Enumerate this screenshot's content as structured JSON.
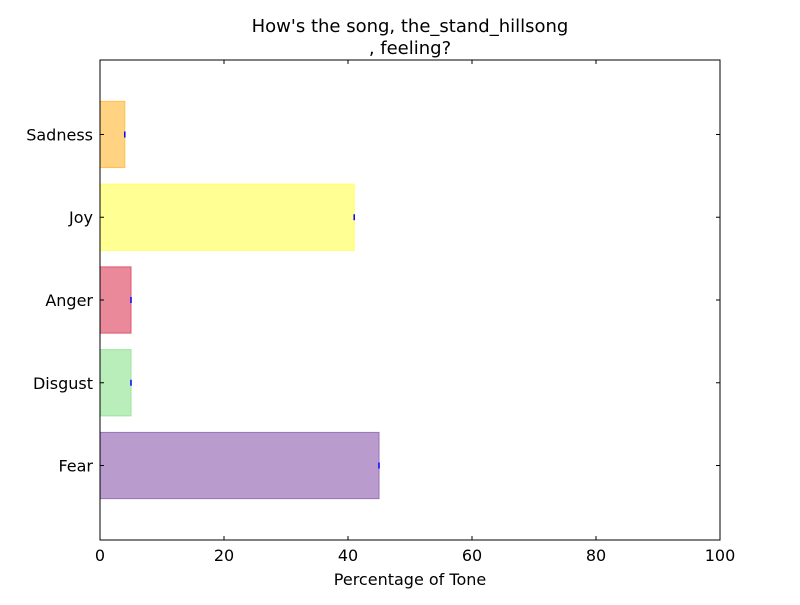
{
  "chart_data": {
    "type": "bar",
    "orientation": "horizontal",
    "title_line1": "How's the song, the_stand_hillsong",
    "title_line2": ", feeling?",
    "xlabel": "Percentage of Tone",
    "ylabel": "",
    "xlim": [
      0,
      100
    ],
    "x_ticks": [
      0,
      20,
      40,
      60,
      80,
      100
    ],
    "categories": [
      "Fear",
      "Disgust",
      "Anger",
      "Joy",
      "Sadness"
    ],
    "values": [
      45,
      5,
      5,
      41,
      4
    ],
    "colors": [
      "#9b72b8",
      "#9be69b",
      "#e0576e",
      "#ffff66",
      "#ffc04c"
    ],
    "edge_colors": [
      "#9b72b8",
      "#9be69b",
      "#e0576e",
      "#ffff66",
      "#ffc04c"
    ],
    "bar_opacity": 0.7,
    "error_marker_color": "#0000ff",
    "grid": false,
    "legend": "none"
  }
}
